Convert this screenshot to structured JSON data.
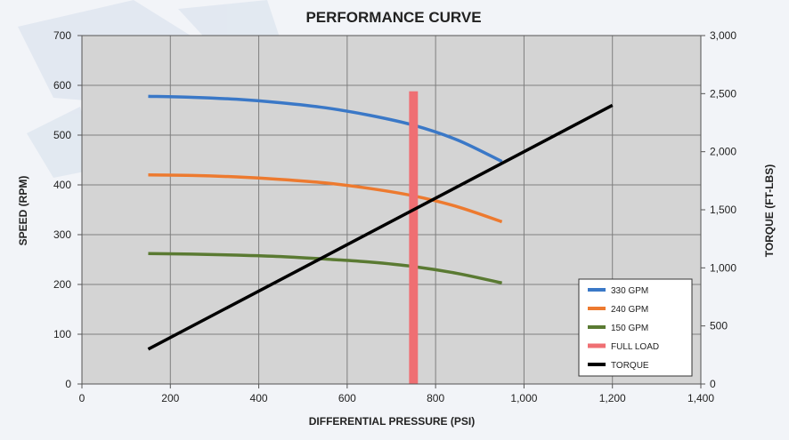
{
  "colors": {
    "plot_bg": "#d4d4d4",
    "page_bg": "#f2f4f8",
    "grid": "#7f7f7f",
    "series_330": "#3a78c7",
    "series_240": "#ed7a2f",
    "series_150": "#5a7a32",
    "full_load": "#ef6f73",
    "torque": "#000000"
  },
  "chart_data": {
    "type": "line",
    "title": "PERFORMANCE CURVE",
    "xlabel": "DIFFERENTIAL PRESSURE  (PSI)",
    "ylabel": "SPEED  (RPM)",
    "y2label": "TORQUE  (FT-LBS)",
    "xlim": [
      0,
      1400
    ],
    "ylim": [
      0,
      700
    ],
    "y2lim": [
      0,
      3000
    ],
    "x_ticks": [
      0,
      200,
      400,
      600,
      800,
      1000,
      1200,
      1400
    ],
    "x_tick_labels": [
      "0",
      "200",
      "400",
      "600",
      "800",
      "1,000",
      "1,200",
      "1,400"
    ],
    "y_ticks": [
      0,
      100,
      200,
      300,
      400,
      500,
      600,
      700
    ],
    "y_tick_labels": [
      "0",
      "100",
      "200",
      "300",
      "400",
      "500",
      "600",
      "700"
    ],
    "y2_ticks": [
      0,
      500,
      1000,
      1500,
      2000,
      2500,
      3000
    ],
    "y2_tick_labels": [
      "0",
      "500",
      "1,000",
      "1,500",
      "2,000",
      "2,500",
      "3,000"
    ],
    "grid": true,
    "legend_position": "bottom-right",
    "series": [
      {
        "name": "330 GPM",
        "axis": "left",
        "color_key": "series_330",
        "kind": "line",
        "x": [
          150,
          250,
          350,
          450,
          550,
          650,
          750,
          850,
          950
        ],
        "y": [
          578,
          576,
          572,
          565,
          555,
          540,
          520,
          490,
          447
        ]
      },
      {
        "name": "240 GPM",
        "axis": "left",
        "color_key": "series_240",
        "kind": "line",
        "x": [
          150,
          250,
          350,
          450,
          550,
          650,
          750,
          850,
          950
        ],
        "y": [
          420,
          419,
          416,
          411,
          404,
          393,
          378,
          356,
          326
        ]
      },
      {
        "name": "150 GPM",
        "axis": "left",
        "color_key": "series_150",
        "kind": "line",
        "x": [
          150,
          250,
          350,
          450,
          550,
          650,
          750,
          850,
          950
        ],
        "y": [
          262,
          261,
          259,
          256,
          251,
          245,
          236,
          222,
          203
        ]
      },
      {
        "name": "FULL LOAD",
        "axis": "left",
        "color_key": "full_load",
        "kind": "band",
        "x_from": 740,
        "x_to": 760,
        "y_from": 0,
        "y_to": 588
      },
      {
        "name": "TORQUE",
        "axis": "right",
        "color_key": "torque",
        "kind": "line",
        "x": [
          150,
          1200
        ],
        "y": [
          300,
          2400
        ]
      }
    ]
  }
}
